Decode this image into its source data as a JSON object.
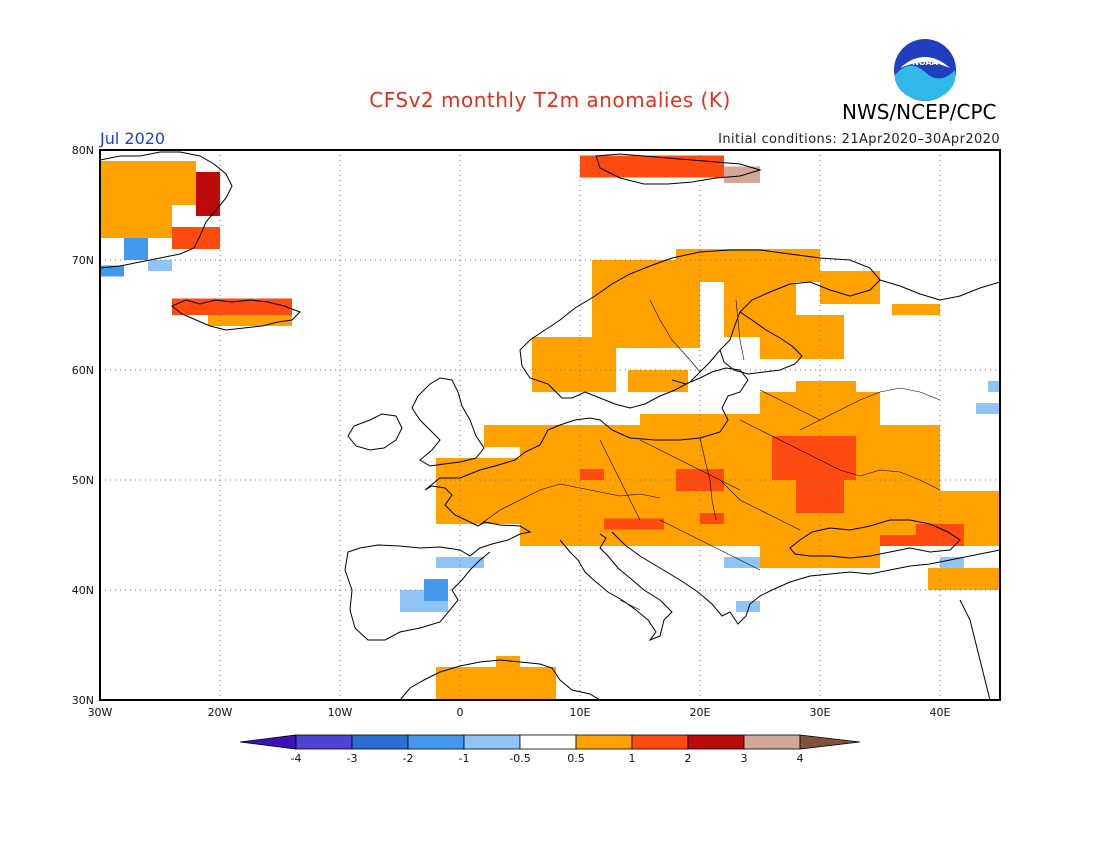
{
  "header": {
    "title": "CFSv2 monthly T2m anomalies (K)",
    "agency": "NWS/NCEP/CPC",
    "month": "Jul 2020",
    "initial_conditions": "Initial conditions: 21Apr2020–30Apr2020"
  },
  "logo": {
    "text": "NOAA"
  },
  "map": {
    "lon_range": [
      -30,
      45
    ],
    "lat_range": [
      30,
      80
    ],
    "grid": true,
    "lat_labels": [
      "80N",
      "70N",
      "60N",
      "50N",
      "40N",
      "30N"
    ],
    "lon_labels": [
      "30W",
      "20W",
      "10W",
      "0",
      "10E",
      "20E",
      "30E",
      "40E"
    ]
  },
  "colorbar": {
    "labels": [
      "-4",
      "-3",
      "-2",
      "-1",
      "-0.5",
      "0.5",
      "1",
      "2",
      "3",
      "4"
    ],
    "colors": [
      "#3a12b8",
      "#4f43d3",
      "#2a6ed6",
      "#4499ee",
      "#8fc4f7",
      "#ffffff",
      "#ffa200",
      "#ff4a10",
      "#bb0a0a",
      "#d2a797",
      "#80543c"
    ]
  },
  "anomaly_colors": {
    "neg_light": "#8fc4f7",
    "neg_mid": "#4499ee",
    "pos_orange": "#ffa200",
    "pos_red": "#ff4a10",
    "pos_dark": "#bb0a0a",
    "pos_brown": "#d2a797"
  }
}
